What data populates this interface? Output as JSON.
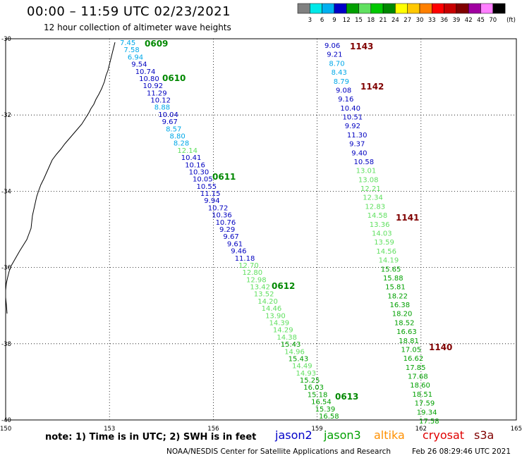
{
  "title": "00:00 – 11:59 UTC 02/23/2021",
  "subtitle": "12 hour collection of altimeter wave heights",
  "legend": {
    "unit": "(ft)",
    "ticks": [
      "3",
      "6",
      "9",
      "12",
      "15",
      "18",
      "21",
      "24",
      "27",
      "30",
      "33",
      "36",
      "39",
      "42",
      "45",
      "70"
    ],
    "colors": [
      "#808080",
      "#00e8e8",
      "#00b0f0",
      "#0000c8",
      "#00a000",
      "#60e060",
      "#00c800",
      "#008800",
      "#ffff00",
      "#ffc800",
      "#ff8000",
      "#ff0000",
      "#c80000",
      "#800000",
      "#a000a0",
      "#ff80ff",
      "#000000"
    ]
  },
  "axes": {
    "lon_labels": [
      "150",
      "153",
      "156",
      "159",
      "162",
      "165"
    ],
    "lat_labels": [
      "-30",
      "-32",
      "-34",
      "-36",
      "-38",
      "-40"
    ]
  },
  "passes": [
    {
      "id": "0609",
      "color": "#008800"
    },
    {
      "id": "0610",
      "color": "#008800"
    },
    {
      "id": "0611",
      "color": "#008800"
    },
    {
      "id": "0612",
      "color": "#008800"
    },
    {
      "id": "0613",
      "color": "#008800"
    },
    {
      "id": "1143",
      "color": "#800000"
    },
    {
      "id": "1142",
      "color": "#800000"
    },
    {
      "id": "1141",
      "color": "#800000"
    },
    {
      "id": "1140",
      "color": "#800000"
    }
  ],
  "track1_values": [
    "7.45",
    "7.58",
    "6.94",
    "9.54",
    "10.74",
    "10.80",
    "10.92",
    "11.29",
    "10.12",
    "8.88",
    "10.04",
    "9.67",
    "8.57",
    "8.80",
    "8.28",
    "12.14",
    "10.41",
    "10.16",
    "10.30",
    "10.05",
    "10.55",
    "11.15",
    "9.94",
    "10.72",
    "10.36",
    "10.76",
    "9.29",
    "9.67",
    "9.61",
    "9.46",
    "11.18",
    "12.70",
    "12.80",
    "12.98",
    "13.42",
    "13.52",
    "14.20",
    "14.46",
    "13.90",
    "14.39",
    "14.29",
    "14.38",
    "15.43",
    "14.96",
    "15.43",
    "14.49",
    "14.93",
    "15.25",
    "16.03",
    "15.18",
    "16.54",
    "15.39",
    "16.58"
  ],
  "track2_values": [
    "9.06",
    "9.21",
    "8.70",
    "8.43",
    "8.79",
    "9.08",
    "9.16",
    "10.40",
    "10.51",
    "9.92",
    "11.30",
    "9.37",
    "9.40",
    "10.58",
    "13.01",
    "13.08",
    "12.21",
    "12.34",
    "12.83",
    "14.58",
    "13.36",
    "14.03",
    "13.59",
    "14.56",
    "14.19",
    "15.65",
    "15.88",
    "15.81",
    "18.22",
    "16.38",
    "18.20",
    "18.52",
    "16.63",
    "18.81",
    "17.05",
    "16.62",
    "17.85",
    "17.68",
    "18.60",
    "18.51",
    "17.59",
    "19.34",
    "17.58"
  ],
  "note": "note: 1) Time is in UTC; 2) SWH is in feet",
  "satellites": [
    {
      "name": "jason2",
      "color": "#0000c8"
    },
    {
      "name": "jason3",
      "color": "#00a000"
    },
    {
      "name": "altika",
      "color": "#ff9000"
    },
    {
      "name": "cryosat",
      "color": "#e00000"
    },
    {
      "name": "s3a",
      "color": "#800000"
    }
  ],
  "credit_left": "NOAA/NESDIS Center for Satellite Applications and Research",
  "credit_right": "Feb 26 08:29:46 UTC 2021"
}
